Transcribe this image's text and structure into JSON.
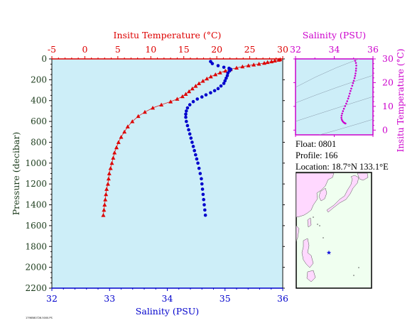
{
  "float_info": {
    "float_line": "Float:  0801",
    "profile_line": "Profile:  166",
    "location_line": "Location:  18.7°N  133.1°E"
  },
  "footnote": "1798580726.5000.PS",
  "colors": {
    "temperature": "#dd0000",
    "salinity": "#0000cc",
    "ts_axis": "#cc00cc",
    "plot_bg": "#cdeef8",
    "map_sea": "#f0fff0",
    "map_land": "#ffd8ff",
    "axis_text": "#1a3a1a"
  },
  "chart_data": [
    {
      "type": "scatter",
      "title": "",
      "top_axis": {
        "label": "Insitu Temperature (°C)",
        "range": [
          -5,
          30
        ],
        "ticks": [
          -5,
          0,
          5,
          10,
          15,
          20,
          25,
          30
        ]
      },
      "bottom_axis": {
        "label": "Salinity (PSU)",
        "range": [
          32,
          36
        ],
        "ticks": [
          32,
          33,
          34,
          35,
          36
        ]
      },
      "y_axis": {
        "label": "Pressure (decibar)",
        "range": [
          0,
          2200
        ],
        "inverted": true,
        "ticks": [
          0,
          200,
          400,
          600,
          800,
          1000,
          1200,
          1400,
          1600,
          1800,
          2000,
          2200
        ]
      },
      "series": [
        {
          "name": "Insitu Temperature",
          "axis": "top",
          "marker": "triangle",
          "points": [
            [
              29.6,
              5
            ],
            [
              29.4,
              10
            ],
            [
              28.8,
              18
            ],
            [
              28.3,
              25
            ],
            [
              27.7,
              32
            ],
            [
              27.2,
              40
            ],
            [
              26.4,
              48
            ],
            [
              25.6,
              56
            ],
            [
              24.8,
              64
            ],
            [
              23.9,
              74
            ],
            [
              23.0,
              86
            ],
            [
              22.1,
              100
            ],
            [
              21.3,
              115
            ],
            [
              20.5,
              132
            ],
            [
              19.8,
              150
            ],
            [
              19.1,
              170
            ],
            [
              18.5,
              190
            ],
            [
              17.9,
              212
            ],
            [
              17.3,
              236
            ],
            [
              16.8,
              260
            ],
            [
              16.3,
              285
            ],
            [
              15.8,
              312
            ],
            [
              15.3,
              338
            ],
            [
              14.8,
              360
            ],
            [
              14.0,
              385
            ],
            [
              13.0,
              410
            ],
            [
              11.6,
              440
            ],
            [
              10.3,
              470
            ],
            [
              9.1,
              510
            ],
            [
              8.1,
              550
            ],
            [
              7.2,
              600
            ],
            [
              6.5,
              650
            ],
            [
              6.0,
              700
            ],
            [
              5.5,
              750
            ],
            [
              5.1,
              800
            ],
            [
              4.8,
              850
            ],
            [
              4.5,
              900
            ],
            [
              4.3,
              950
            ],
            [
              4.1,
              1000
            ],
            [
              3.9,
              1050
            ],
            [
              3.7,
              1100
            ],
            [
              3.6,
              1150
            ],
            [
              3.5,
              1200
            ],
            [
              3.3,
              1250
            ],
            [
              3.2,
              1300
            ],
            [
              3.1,
              1350
            ],
            [
              3.0,
              1400
            ],
            [
              2.9,
              1450
            ],
            [
              2.8,
              1500
            ]
          ]
        },
        {
          "name": "Salinity",
          "axis": "bottom",
          "marker": "circle",
          "points": [
            [
              34.75,
              25
            ],
            [
              34.78,
              45
            ],
            [
              34.88,
              65
            ],
            [
              34.98,
              80
            ],
            [
              35.07,
              90
            ],
            [
              35.1,
              100
            ],
            [
              35.08,
              115
            ],
            [
              35.05,
              135
            ],
            [
              35.04,
              160
            ],
            [
              35.02,
              185
            ],
            [
              35.0,
              210
            ],
            [
              34.98,
              235
            ],
            [
              34.93,
              260
            ],
            [
              34.88,
              285
            ],
            [
              34.82,
              305
            ],
            [
              34.75,
              325
            ],
            [
              34.67,
              345
            ],
            [
              34.6,
              365
            ],
            [
              34.52,
              385
            ],
            [
              34.45,
              410
            ],
            [
              34.39,
              440
            ],
            [
              34.35,
              470
            ],
            [
              34.33,
              500
            ],
            [
              34.32,
              530
            ],
            [
              34.32,
              560
            ],
            [
              34.33,
              600
            ],
            [
              34.35,
              640
            ],
            [
              34.37,
              680
            ],
            [
              34.39,
              720
            ],
            [
              34.41,
              760
            ],
            [
              34.43,
              800
            ],
            [
              34.45,
              840
            ],
            [
              34.47,
              880
            ],
            [
              34.49,
              920
            ],
            [
              34.51,
              960
            ],
            [
              34.53,
              1000
            ],
            [
              34.55,
              1050
            ],
            [
              34.57,
              1100
            ],
            [
              34.59,
              1150
            ],
            [
              34.6,
              1200
            ],
            [
              34.61,
              1250
            ],
            [
              34.62,
              1300
            ],
            [
              34.63,
              1350
            ],
            [
              34.64,
              1400
            ],
            [
              34.65,
              1450
            ],
            [
              34.66,
              1500
            ]
          ]
        }
      ]
    },
    {
      "type": "scatter",
      "title": "",
      "x_axis": {
        "label": "Salinity (PSU)",
        "range": [
          32,
          36
        ],
        "ticks": [
          32,
          34,
          36
        ]
      },
      "y_axis": {
        "label": "Insitu Temperature (°C)",
        "range": [
          -2,
          30
        ],
        "ticks": [
          0,
          10,
          20,
          30
        ],
        "side": "right"
      },
      "series": [
        {
          "name": "T-S",
          "marker": "dot",
          "points": [
            [
              35.08,
              29.2
            ],
            [
              35.12,
              28.3
            ],
            [
              35.14,
              27.2
            ],
            [
              35.13,
              26.0
            ],
            [
              35.12,
              25.0
            ],
            [
              35.1,
              23.9
            ],
            [
              35.08,
              22.9
            ],
            [
              35.05,
              21.9
            ],
            [
              35.01,
              20.8
            ],
            [
              34.97,
              19.8
            ],
            [
              34.93,
              18.7
            ],
            [
              34.88,
              17.5
            ],
            [
              34.84,
              16.5
            ],
            [
              34.8,
              15.4
            ],
            [
              34.76,
              14.3
            ],
            [
              34.72,
              13.3
            ],
            [
              34.67,
              12.2
            ],
            [
              34.62,
              11.2
            ],
            [
              34.56,
              10.1
            ],
            [
              34.5,
              9.0
            ],
            [
              34.45,
              8.0
            ],
            [
              34.41,
              7.0
            ],
            [
              34.38,
              6.1
            ],
            [
              34.37,
              5.2
            ],
            [
              34.39,
              4.4
            ],
            [
              34.43,
              3.8
            ],
            [
              34.48,
              3.3
            ],
            [
              34.53,
              3.0
            ],
            [
              34.58,
              2.8
            ]
          ]
        }
      ]
    }
  ]
}
